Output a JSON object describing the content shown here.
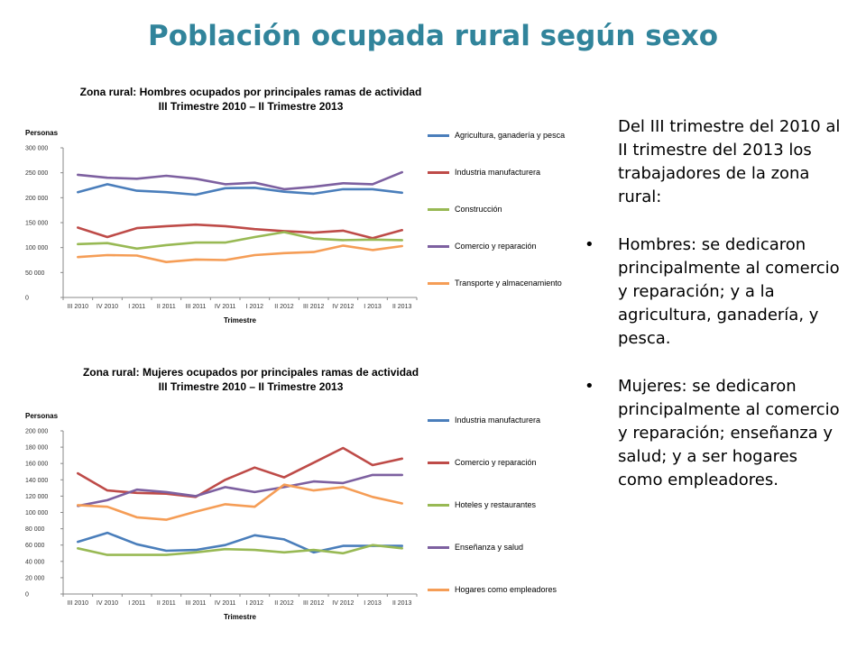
{
  "slide": {
    "title": "Población ocupada rural según sexo",
    "intro": "Del III trimestre del 2010 al II trimestre del 2013 los trabajadores de la zona rural:",
    "bullet_glyph": "•",
    "bullets": [
      "Hombres: se dedicaron principalmente al comercio y reparación; y a la agricultura, ganadería, y pesca.",
      "Mujeres: se dedicaron principalmente al comercio y reparación; enseñanza y salud; y a ser hogares como empleadores."
    ]
  },
  "chart_data": [
    {
      "type": "line",
      "title_lines": [
        "Zona rural: Hombres ocupados por principales ramas de actividad",
        "III Trimestre 2010 – II Trimestre 2013"
      ],
      "ylabel": "Personas",
      "xlabel": "Trimestre",
      "ylim": [
        0,
        300000
      ],
      "yticks": [
        0,
        50000,
        100000,
        150000,
        200000,
        250000,
        300000
      ],
      "ytick_labels": [
        "0",
        "50 000",
        "100 000",
        "150 000",
        "200 000",
        "250 000",
        "300 000"
      ],
      "categories": [
        "III 2010",
        "IV 2010",
        "I 2011",
        "II 2011",
        "III 2011",
        "IV 2011",
        "I 2012",
        "II 2012",
        "III 2012",
        "IV 2012",
        "I 2013",
        "II 2013"
      ],
      "legend_position": "right",
      "grid": false,
      "series": [
        {
          "name": "Agricultura, ganadería y pesca",
          "color": "#4a7ebb",
          "values": [
            211000,
            227000,
            214000,
            211000,
            206000,
            219000,
            220000,
            212000,
            208000,
            217000,
            217000,
            210000
          ]
        },
        {
          "name": "Industria manufacturera",
          "color": "#be4b48",
          "values": [
            140000,
            121000,
            139000,
            143000,
            146000,
            143000,
            137000,
            133000,
            130000,
            134000,
            119000,
            135000
          ]
        },
        {
          "name": "Construcción",
          "color": "#98b954",
          "values": [
            107000,
            109000,
            98000,
            105000,
            110000,
            110000,
            121000,
            131000,
            118000,
            115000,
            116000,
            115000
          ]
        },
        {
          "name": "Comercio y reparación",
          "color": "#7d60a0",
          "values": [
            246000,
            240000,
            238000,
            244000,
            238000,
            227000,
            230000,
            217000,
            222000,
            229000,
            227000,
            251000
          ]
        },
        {
          "name": "Transporte y almacenamiento",
          "color": "#f59d56",
          "values": [
            81000,
            85000,
            84000,
            71000,
            76000,
            75000,
            85000,
            89000,
            91000,
            104000,
            95000,
            103000
          ]
        }
      ]
    },
    {
      "type": "line",
      "title_lines": [
        "Zona rural: Mujeres ocupados por principales ramas de actividad",
        "III Trimestre 2010 – II Trimestre 2013"
      ],
      "ylabel": "Personas",
      "xlabel": "Trimestre",
      "ylim": [
        0,
        200000
      ],
      "yticks": [
        0,
        20000,
        40000,
        60000,
        80000,
        100000,
        120000,
        140000,
        160000,
        180000,
        200000
      ],
      "ytick_labels": [
        "0",
        "20 000",
        "40 000",
        "60 000",
        "80 000",
        "100 000",
        "120 000",
        "140 000",
        "160 000",
        "180 000",
        "200 000"
      ],
      "categories": [
        "III 2010",
        "IV 2010",
        "I 2011",
        "II 2011",
        "III 2011",
        "IV 2011",
        "I 2012",
        "II 2012",
        "III 2012",
        "IV 2012",
        "I 2013",
        "II 2013"
      ],
      "legend_position": "right",
      "grid": false,
      "series": [
        {
          "name": "Industria manufacturera",
          "color": "#4a7ebb",
          "values": [
            64000,
            75000,
            61000,
            53000,
            54000,
            60000,
            72000,
            67000,
            51000,
            59000,
            59000,
            59000
          ]
        },
        {
          "name": "Comercio y reparación",
          "color": "#be4b48",
          "values": [
            148000,
            127000,
            124000,
            123000,
            119000,
            140000,
            155000,
            143000,
            161000,
            179000,
            158000,
            166000
          ]
        },
        {
          "name": "Hoteles y restaurantes",
          "color": "#98b954",
          "values": [
            56000,
            48000,
            48000,
            48000,
            51000,
            55000,
            54000,
            51000,
            54000,
            50000,
            60000,
            56000
          ]
        },
        {
          "name": "Enseñanza y salud",
          "color": "#7d60a0",
          "values": [
            108000,
            115000,
            128000,
            125000,
            120000,
            131000,
            125000,
            131000,
            138000,
            136000,
            146000,
            146000
          ]
        },
        {
          "name": "Hogares como empleadores",
          "color": "#f59d56",
          "values": [
            109000,
            107000,
            94000,
            91000,
            101000,
            110000,
            107000,
            134000,
            127000,
            131000,
            119000,
            111000
          ]
        }
      ]
    }
  ]
}
